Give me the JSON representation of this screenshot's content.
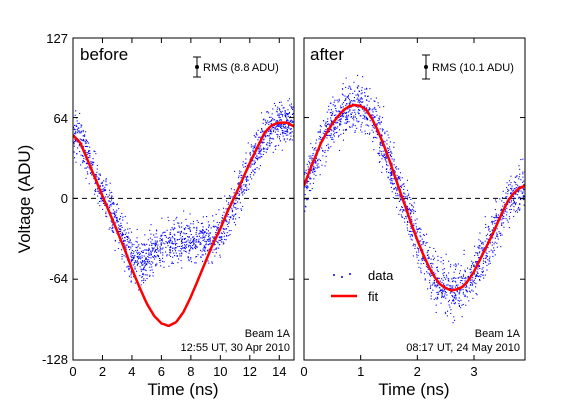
{
  "chart_data": {
    "type": "scatter",
    "ylabel": "Voltage (ADU)",
    "y_ticks": [
      "127",
      "64",
      "0",
      "-64",
      "-128"
    ],
    "ylim": [
      -128,
      127
    ],
    "legend": {
      "placement": "lower-left of right panel",
      "entries": [
        {
          "label": "data",
          "style": "blue dots"
        },
        {
          "label": "fit",
          "style": "red line"
        }
      ]
    },
    "zero_line": "dashed at 0",
    "colors": {
      "data": "#0000ff",
      "fit": "#ff0000",
      "zero": "#000000"
    },
    "panels": [
      {
        "label": "before",
        "xlabel": "Time (ns)",
        "x_ticks": [
          "0",
          "2",
          "4",
          "6",
          "8",
          "10",
          "12",
          "14"
        ],
        "xlim": [
          0,
          15
        ],
        "rms_label": "RMS (8.8 ADU)",
        "rms": 8.8,
        "beam": "Beam 1A",
        "timestamp": "12:55 UT, 30 Apr 2010",
        "fit": [
          [
            0,
            50
          ],
          [
            0.5,
            44
          ],
          [
            1,
            30
          ],
          [
            1.5,
            16
          ],
          [
            2,
            2
          ],
          [
            2.5,
            -12
          ],
          [
            3,
            -26
          ],
          [
            3.5,
            -40
          ],
          [
            4,
            -56
          ],
          [
            4.5,
            -70
          ],
          [
            5,
            -83
          ],
          [
            5.5,
            -93
          ],
          [
            6,
            -99
          ],
          [
            6.5,
            -101
          ],
          [
            7,
            -98
          ],
          [
            7.5,
            -90
          ],
          [
            8,
            -78
          ],
          [
            8.5,
            -64
          ],
          [
            9,
            -50
          ],
          [
            9.5,
            -36
          ],
          [
            10,
            -24
          ],
          [
            10.5,
            -10
          ],
          [
            11,
            2
          ],
          [
            11.5,
            15
          ],
          [
            12,
            28
          ],
          [
            12.5,
            40
          ],
          [
            13,
            52
          ],
          [
            13.5,
            58
          ],
          [
            14,
            60
          ],
          [
            14.5,
            60
          ],
          [
            15,
            57
          ]
        ],
        "data_trend": [
          [
            0,
            52
          ],
          [
            0.5,
            45
          ],
          [
            1,
            32
          ],
          [
            1.5,
            18
          ],
          [
            2,
            4
          ],
          [
            2.5,
            -10
          ],
          [
            3,
            -23
          ],
          [
            3.5,
            -35
          ],
          [
            4,
            -47
          ],
          [
            4.5,
            -51
          ],
          [
            5,
            -47
          ],
          [
            5.5,
            -40
          ],
          [
            6,
            -37
          ],
          [
            6.5,
            -36
          ],
          [
            7,
            -35
          ],
          [
            7.5,
            -34
          ],
          [
            8,
            -33
          ],
          [
            8.5,
            -33
          ],
          [
            9,
            -32
          ],
          [
            9.5,
            -31
          ],
          [
            10,
            -29
          ],
          [
            10.5,
            -16
          ],
          [
            11,
            0
          ],
          [
            11.5,
            14
          ],
          [
            12,
            28
          ],
          [
            12.5,
            41
          ],
          [
            13,
            52
          ],
          [
            13.5,
            58
          ],
          [
            14,
            61
          ],
          [
            14.5,
            60
          ],
          [
            15,
            58
          ]
        ],
        "noise_amplitude": 8.8
      },
      {
        "label": "after",
        "xlabel": "Time (ns)",
        "x_ticks": [
          "0",
          "1",
          "2",
          "3"
        ],
        "xlim": [
          0,
          3.9
        ],
        "rms_label": "RMS (10.1 ADU)",
        "rms": 10.1,
        "beam": "Beam 1A",
        "timestamp": "08:17 UT, 24 May 2010",
        "fit": [
          [
            0,
            10
          ],
          [
            0.1,
            22
          ],
          [
            0.2,
            33
          ],
          [
            0.3,
            44
          ],
          [
            0.4,
            52
          ],
          [
            0.5,
            59
          ],
          [
            0.6,
            65
          ],
          [
            0.7,
            70
          ],
          [
            0.8,
            73
          ],
          [
            0.9,
            74
          ],
          [
            1.0,
            73
          ],
          [
            1.1,
            70
          ],
          [
            1.2,
            63
          ],
          [
            1.3,
            54
          ],
          [
            1.4,
            43
          ],
          [
            1.5,
            31
          ],
          [
            1.6,
            18
          ],
          [
            1.7,
            5
          ],
          [
            1.8,
            -8
          ],
          [
            1.9,
            -21
          ],
          [
            2.0,
            -33
          ],
          [
            2.1,
            -44
          ],
          [
            2.2,
            -54
          ],
          [
            2.3,
            -62
          ],
          [
            2.4,
            -68
          ],
          [
            2.5,
            -71
          ],
          [
            2.6,
            -73
          ],
          [
            2.7,
            -72
          ],
          [
            2.8,
            -70
          ],
          [
            2.9,
            -65
          ],
          [
            3.0,
            -58
          ],
          [
            3.1,
            -49
          ],
          [
            3.2,
            -40
          ],
          [
            3.3,
            -31
          ],
          [
            3.4,
            -21
          ],
          [
            3.5,
            -11
          ],
          [
            3.6,
            -2
          ],
          [
            3.7,
            4
          ],
          [
            3.8,
            8
          ],
          [
            3.9,
            10
          ]
        ],
        "noise_amplitude": 10.1
      }
    ]
  }
}
